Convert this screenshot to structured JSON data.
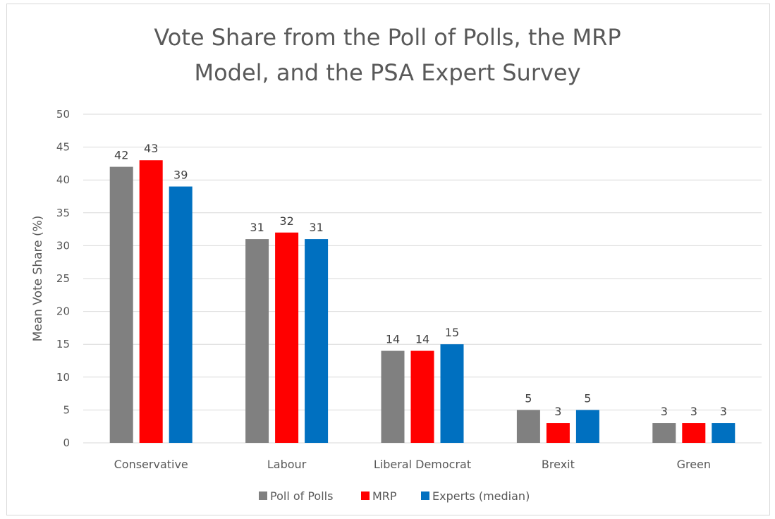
{
  "chart_data": {
    "type": "bar",
    "title_line1": "Vote Share from the Poll of Polls, the MRP",
    "title_line2": "Model, and the PSA Expert Survey",
    "xlabel": "",
    "ylabel": "Mean Vote Share (%)",
    "ylim": [
      0,
      50
    ],
    "yticks": [
      0,
      5,
      10,
      15,
      20,
      25,
      30,
      35,
      40,
      45,
      50
    ],
    "grid": true,
    "legend_position": "bottom",
    "categories": [
      "Conservative",
      "Labour",
      "Liberal Democrat",
      "Brexit",
      "Green"
    ],
    "series": [
      {
        "name": "Poll of Polls",
        "color": "#808080",
        "values": [
          42,
          31,
          14,
          5,
          3
        ]
      },
      {
        "name": "MRP",
        "color": "#ff0000",
        "values": [
          43,
          32,
          14,
          3,
          3
        ]
      },
      {
        "name": "Experts (median)",
        "color": "#0070c0",
        "values": [
          39,
          31,
          15,
          5,
          3
        ]
      }
    ]
  }
}
